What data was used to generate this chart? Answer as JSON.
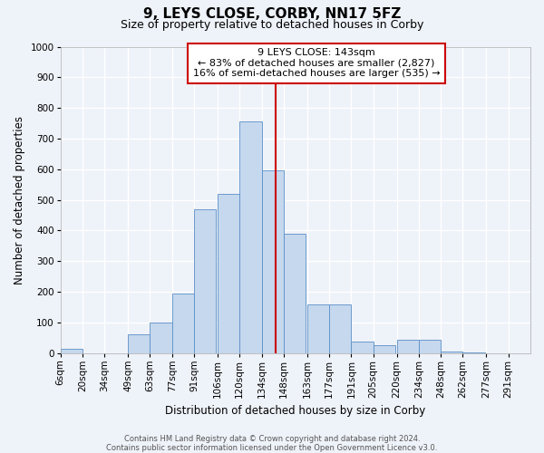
{
  "title": "9, LEYS CLOSE, CORBY, NN17 5FZ",
  "subtitle": "Size of property relative to detached houses in Corby",
  "xlabel": "Distribution of detached houses by size in Corby",
  "ylabel": "Number of detached properties",
  "bin_labels": [
    "6sqm",
    "20sqm",
    "34sqm",
    "49sqm",
    "63sqm",
    "77sqm",
    "91sqm",
    "106sqm",
    "120sqm",
    "134sqm",
    "148sqm",
    "163sqm",
    "177sqm",
    "191sqm",
    "205sqm",
    "220sqm",
    "234sqm",
    "248sqm",
    "262sqm",
    "277sqm",
    "291sqm"
  ],
  "bin_left_edges": [
    6,
    20,
    34,
    49,
    63,
    77,
    91,
    106,
    120,
    134,
    148,
    163,
    177,
    191,
    205,
    220,
    234,
    248,
    262,
    277,
    291
  ],
  "bar_heights": [
    13,
    0,
    0,
    62,
    100,
    195,
    470,
    520,
    755,
    595,
    390,
    160,
    160,
    37,
    25,
    42,
    42,
    5,
    2,
    0,
    0
  ],
  "bar_color": "#c5d8ee",
  "bar_edgecolor": "#5b8fc7",
  "bar_linewidth": 0.6,
  "vline_x": 143,
  "vline_color": "#cc0000",
  "vline_linewidth": 1.5,
  "ylim": [
    0,
    1000
  ],
  "yticks": [
    0,
    100,
    200,
    300,
    400,
    500,
    600,
    700,
    800,
    900,
    1000
  ],
  "annotation_title": "9 LEYS CLOSE: 143sqm",
  "annotation_line1": "← 83% of detached houses are smaller (2,827)",
  "annotation_line2": "16% of semi-detached houses are larger (535) →",
  "annotation_box_edgecolor": "#cc0000",
  "annotation_box_facecolor": "#ffffff",
  "footer1": "Contains HM Land Registry data © Crown copyright and database right 2024.",
  "footer2": "Contains public sector information licensed under the Open Government Licence v3.0.",
  "background_color": "#eef2f9",
  "grid_color": "#ffffff",
  "title_fontsize": 11,
  "subtitle_fontsize": 9,
  "axis_label_fontsize": 8.5,
  "tick_fontsize": 7.5,
  "annotation_fontsize": 8,
  "footer_fontsize": 6
}
